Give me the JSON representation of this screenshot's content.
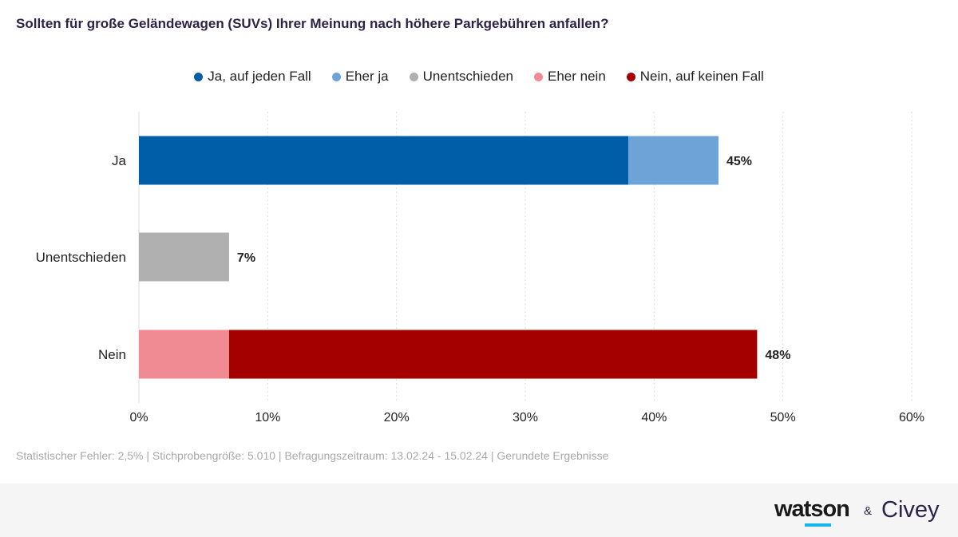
{
  "title": "Sollten für große Geländewagen (SUVs) Ihrer Meinung nach höhere Parkgebühren anfallen?",
  "legend": [
    {
      "label": "Ja, auf jeden Fall",
      "color": "#005ea8"
    },
    {
      "label": "Eher ja",
      "color": "#6ea3d8"
    },
    {
      "label": "Unentschieden",
      "color": "#b0b0b0"
    },
    {
      "label": "Eher nein",
      "color": "#f08a93"
    },
    {
      "label": "Nein, auf keinen Fall",
      "color": "#a50000"
    }
  ],
  "chart_data": {
    "type": "bar",
    "orientation": "horizontal",
    "stacked": true,
    "categories": [
      "Ja",
      "Unentschieden",
      "Nein"
    ],
    "segments": [
      [
        {
          "series": "Ja, auf jeden Fall",
          "value": 38,
          "color": "#005ea8"
        },
        {
          "series": "Eher ja",
          "value": 7,
          "color": "#6ea3d8"
        }
      ],
      [
        {
          "series": "Unentschieden",
          "value": 7,
          "color": "#b0b0b0"
        }
      ],
      [
        {
          "series": "Eher nein",
          "value": 7,
          "color": "#f08a93"
        },
        {
          "series": "Nein, auf keinen Fall",
          "value": 41,
          "color": "#a50000"
        }
      ]
    ],
    "totals": [
      "45%",
      "7%",
      "48%"
    ],
    "xlim": [
      0,
      60
    ],
    "xticks": [
      "0%",
      "10%",
      "20%",
      "30%",
      "40%",
      "50%",
      "60%"
    ],
    "grid": true,
    "legend_position": "top"
  },
  "footnote": "Statistischer Fehler: 2,5% | Stichprobengröße: 5.010 | Befragungszeitraum: 13.02.24 - 15.02.24 | Gerundete Ergebnisse",
  "footer": {
    "brand_left": "watson",
    "ampersand": "&",
    "brand_right": "Civey"
  }
}
